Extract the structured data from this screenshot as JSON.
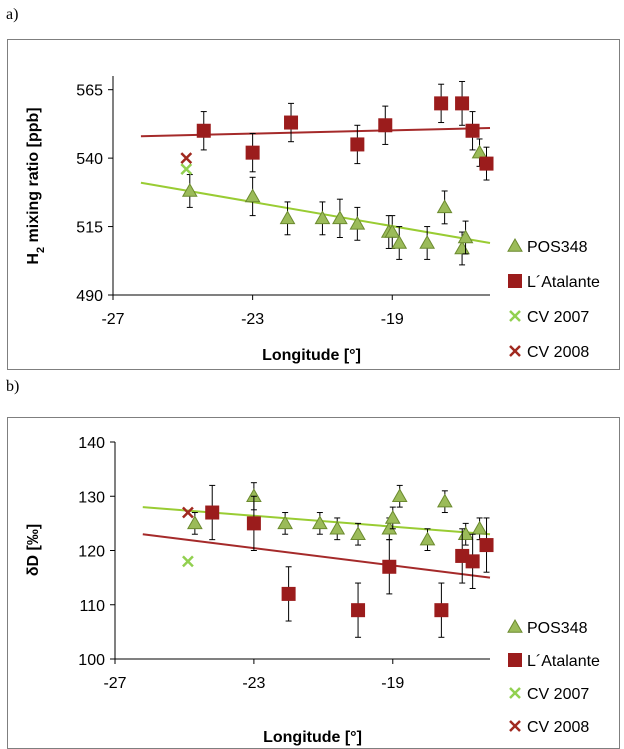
{
  "panels": [
    {
      "label": "a)"
    },
    {
      "label": "b)"
    }
  ],
  "colors": {
    "pos348_fill": "#9BBB59",
    "pos348_stroke": "#6b8a2e",
    "atalante_fill": "#C0504D",
    "atalante_dark": "#9b1c1c",
    "cv2007": "#92D050",
    "cv2008": "#A0291F",
    "trend_pos348": "#99CC33",
    "trend_atalante": "#A52A2A",
    "axis": "#000000",
    "errorbar": "#000000"
  },
  "chart_data": [
    {
      "type": "scatter",
      "title": "",
      "xlabel": "Longitude [°]",
      "ylabel_main": "H",
      "ylabel_sub": "2",
      "ylabel_rest": " mixing ratio [ppb]",
      "xlim": [
        -27,
        -16.2
      ],
      "ylim": [
        490,
        570
      ],
      "xticks": [
        -27,
        -23,
        -19
      ],
      "xtick_labels": [
        "-27",
        "-23",
        "-19"
      ],
      "yticks": [
        490,
        515,
        540,
        565
      ],
      "ytick_labels": [
        "490",
        "515",
        "540",
        "565"
      ],
      "legend_position": "right",
      "series": [
        {
          "name": "POS348",
          "marker": "triangle",
          "points": [
            {
              "x": -24.8,
              "y": 528,
              "err": 6
            },
            {
              "x": -23.0,
              "y": 526,
              "err": 7
            },
            {
              "x": -22.0,
              "y": 518,
              "err": 6
            },
            {
              "x": -21.0,
              "y": 518,
              "err": 6
            },
            {
              "x": -20.5,
              "y": 518,
              "err": 7
            },
            {
              "x": -20.0,
              "y": 516,
              "err": 6
            },
            {
              "x": -19.1,
              "y": 513,
              "err": 6
            },
            {
              "x": -19.0,
              "y": 513,
              "err": 6
            },
            {
              "x": -18.8,
              "y": 509,
              "err": 6
            },
            {
              "x": -18.0,
              "y": 509,
              "err": 6
            },
            {
              "x": -17.5,
              "y": 522,
              "err": 6
            },
            {
              "x": -17.0,
              "y": 507,
              "err": 6
            },
            {
              "x": -16.9,
              "y": 511,
              "err": 6
            },
            {
              "x": -16.5,
              "y": 542,
              "err": 5
            }
          ]
        },
        {
          "name": "L´Atalante",
          "marker": "square",
          "points": [
            {
              "x": -24.4,
              "y": 550,
              "err": 7
            },
            {
              "x": -23.0,
              "y": 542,
              "err": 7
            },
            {
              "x": -21.9,
              "y": 553,
              "err": 7
            },
            {
              "x": -20.0,
              "y": 545,
              "err": 7
            },
            {
              "x": -19.2,
              "y": 552,
              "err": 7
            },
            {
              "x": -17.6,
              "y": 560,
              "err": 7
            },
            {
              "x": -17.0,
              "y": 560,
              "err": 8
            },
            {
              "x": -16.7,
              "y": 550,
              "err": 7
            },
            {
              "x": -16.3,
              "y": 538,
              "err": 6
            }
          ]
        },
        {
          "name": "CV 2007",
          "marker": "x",
          "points": [
            {
              "x": -24.9,
              "y": 536
            }
          ]
        },
        {
          "name": "CV 2008",
          "marker": "x",
          "points": [
            {
              "x": -24.9,
              "y": 540
            }
          ]
        }
      ],
      "trendlines": [
        {
          "series": "POS348",
          "x": [
            -26.2,
            -16.2
          ],
          "y": [
            531,
            509
          ]
        },
        {
          "series": "L´Atalante",
          "x": [
            -26.2,
            -16.2
          ],
          "y": [
            548,
            551
          ]
        }
      ]
    },
    {
      "type": "scatter",
      "title": "",
      "xlabel": "Longitude [°]",
      "ylabel": "δD [‰]",
      "xlim": [
        -27,
        -16.2
      ],
      "ylim": [
        100,
        140
      ],
      "xticks": [
        -27,
        -23,
        -19
      ],
      "xtick_labels": [
        "-27",
        "-23",
        "-19"
      ],
      "yticks": [
        100,
        110,
        120,
        130,
        140
      ],
      "ytick_labels": [
        "100",
        "110",
        "120",
        "130",
        "140"
      ],
      "legend_position": "right",
      "series": [
        {
          "name": "POS348",
          "marker": "triangle",
          "points": [
            {
              "x": -24.7,
              "y": 125,
              "err": 2
            },
            {
              "x": -23.0,
              "y": 130,
              "err": 2.5
            },
            {
              "x": -22.1,
              "y": 125,
              "err": 2
            },
            {
              "x": -21.1,
              "y": 125,
              "err": 2
            },
            {
              "x": -20.6,
              "y": 124,
              "err": 2
            },
            {
              "x": -20.0,
              "y": 123,
              "err": 2
            },
            {
              "x": -19.1,
              "y": 124,
              "err": 2
            },
            {
              "x": -19.0,
              "y": 126,
              "err": 2
            },
            {
              "x": -18.8,
              "y": 130,
              "err": 2
            },
            {
              "x": -18.0,
              "y": 122,
              "err": 2
            },
            {
              "x": -17.5,
              "y": 129,
              "err": 2
            },
            {
              "x": -16.9,
              "y": 123,
              "err": 2
            },
            {
              "x": -16.5,
              "y": 124,
              "err": 2
            }
          ]
        },
        {
          "name": "L´Atalante",
          "marker": "square",
          "points": [
            {
              "x": -24.2,
              "y": 127,
              "err": 5
            },
            {
              "x": -23.0,
              "y": 125,
              "err": 5
            },
            {
              "x": -22.0,
              "y": 112,
              "err": 5
            },
            {
              "x": -20.0,
              "y": 109,
              "err": 5
            },
            {
              "x": -19.1,
              "y": 117,
              "err": 5
            },
            {
              "x": -17.6,
              "y": 109,
              "err": 5
            },
            {
              "x": -17.0,
              "y": 119,
              "err": 5
            },
            {
              "x": -16.7,
              "y": 118,
              "err": 5
            },
            {
              "x": -16.3,
              "y": 121,
              "err": 5
            }
          ]
        },
        {
          "name": "CV 2007",
          "marker": "x",
          "points": [
            {
              "x": -24.9,
              "y": 118
            }
          ]
        },
        {
          "name": "CV 2008",
          "marker": "x",
          "points": [
            {
              "x": -24.9,
              "y": 127
            }
          ]
        }
      ],
      "trendlines": [
        {
          "series": "POS348",
          "x": [
            -26.2,
            -16.2
          ],
          "y": [
            128,
            123
          ]
        },
        {
          "series": "L´Atalante",
          "x": [
            -26.2,
            -16.2
          ],
          "y": [
            123,
            115
          ]
        }
      ]
    }
  ]
}
